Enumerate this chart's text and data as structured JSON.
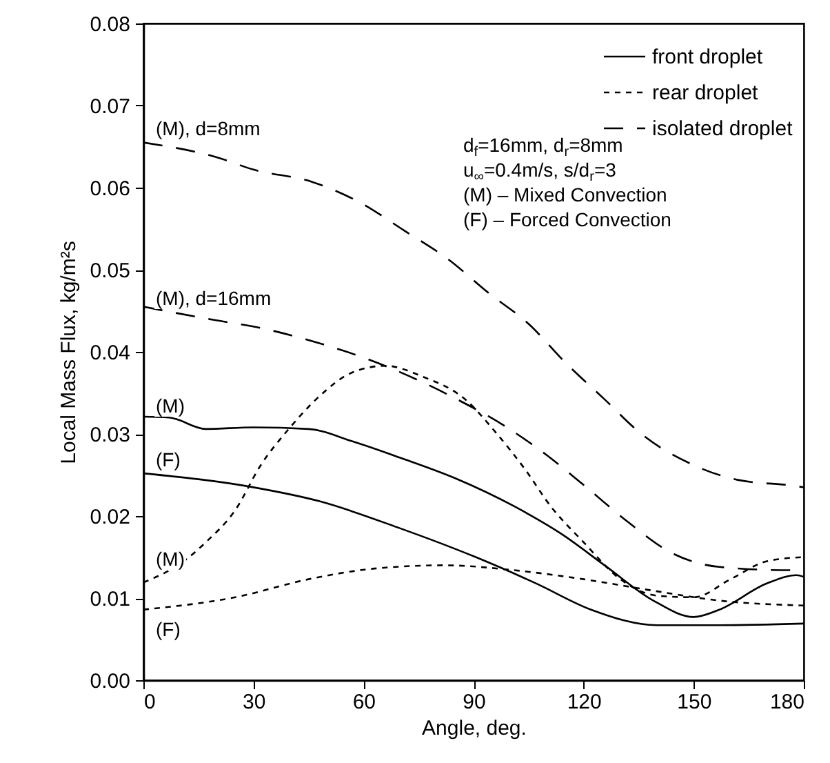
{
  "chart_data": {
    "type": "line",
    "xlabel": "Angle, deg.",
    "ylabel": "Local Mass Flux, kg/m²s",
    "xlim": [
      0,
      180
    ],
    "xticks": [
      0,
      30,
      60,
      90,
      120,
      150,
      180
    ],
    "ylim": [
      0,
      0.08
    ],
    "yticks": [
      {
        "value": 0,
        "label": "0.00"
      },
      0.01,
      0.02,
      0.03,
      0.04,
      0.05,
      0.06,
      0.07,
      0.08
    ],
    "grid": false,
    "legend": "top right",
    "marker": "none",
    "series": [
      {
        "name": "front droplet",
        "color": "#000000",
        "line_style": "solid",
        "x": [
          0,
          7,
          17,
          30,
          45,
          57,
          70,
          85,
          101,
          114,
          126,
          139,
          150,
          157,
          170,
          178,
          180
        ],
        "values": [
          0.0321,
          0.032,
          0.0306,
          0.0308,
          0.0306,
          0.0291,
          0.0271,
          0.0246,
          0.0212,
          0.0178,
          0.0139,
          0.0097,
          0.0077,
          0.0086,
          0.0118,
          0.0128,
          0.0126
        ]
      },
      {
        "color": "#000000",
        "line_style": "solid",
        "x": [
          0,
          30,
          48,
          70,
          90,
          107,
          122,
          140,
          157,
          180
        ],
        "values": [
          0.0252,
          0.0235,
          0.0218,
          0.0185,
          0.0151,
          0.0118,
          0.0086,
          0.0067,
          0.0067,
          0.0069
        ]
      },
      {
        "name": "rear droplet",
        "color": "#000000",
        "line_style": "dotted",
        "x": [
          0,
          11,
          17,
          25,
          32,
          40,
          48,
          57,
          66,
          76,
          88,
          96,
          104,
          111,
          120,
          130,
          140,
          150,
          160,
          170,
          180
        ],
        "values": [
          0.0119,
          0.0145,
          0.0168,
          0.0207,
          0.0262,
          0.0308,
          0.0346,
          0.0375,
          0.0383,
          0.037,
          0.0341,
          0.0302,
          0.0257,
          0.0212,
          0.0168,
          0.0123,
          0.0103,
          0.0101,
          0.0123,
          0.0145,
          0.015
        ]
      },
      {
        "color": "#000000",
        "line_style": "dotted",
        "x": [
          0,
          25,
          45,
          63,
          82,
          101,
          120,
          139,
          157,
          180
        ],
        "values": [
          0.0086,
          0.0101,
          0.0123,
          0.0136,
          0.014,
          0.0134,
          0.0123,
          0.0109,
          0.0097,
          0.0091
        ]
      },
      {
        "name": "isolated droplet",
        "color": "#000000",
        "line_style": "dashed",
        "x": [
          0,
          20,
          30,
          46,
          59,
          71,
          83,
          94,
          105,
          115,
          125.5,
          136,
          149,
          162,
          177,
          180
        ],
        "values": [
          0.0655,
          0.0637,
          0.0622,
          0.0607,
          0.0582,
          0.0548,
          0.0513,
          0.0472,
          0.0434,
          0.0387,
          0.0343,
          0.0299,
          0.0264,
          0.0244,
          0.0237,
          0.0235
        ]
      },
      {
        "color": "#000000",
        "line_style": "dashed",
        "x": [
          0,
          19,
          32,
          46,
          60,
          86,
          98,
          110,
          121,
          132,
          144,
          157,
          176,
          180
        ],
        "values": [
          0.0455,
          0.0439,
          0.0429,
          0.0413,
          0.0393,
          0.0341,
          0.0311,
          0.0274,
          0.0234,
          0.0193,
          0.0155,
          0.0138,
          0.0134,
          0.0134
        ]
      }
    ],
    "annotations": [
      "(M),  d=8mm",
      "(M),  d=16mm",
      "(M)",
      "(F)",
      "(M)",
      "(F)",
      "d$_{f}$=16mm,  d$_{r}$=8mm",
      "u$_{∞}$=0.4m/s,  s/d$_{r}$=3",
      "(M)  –  Mixed Convection",
      "(F)  –  Forced Convection"
    ]
  }
}
